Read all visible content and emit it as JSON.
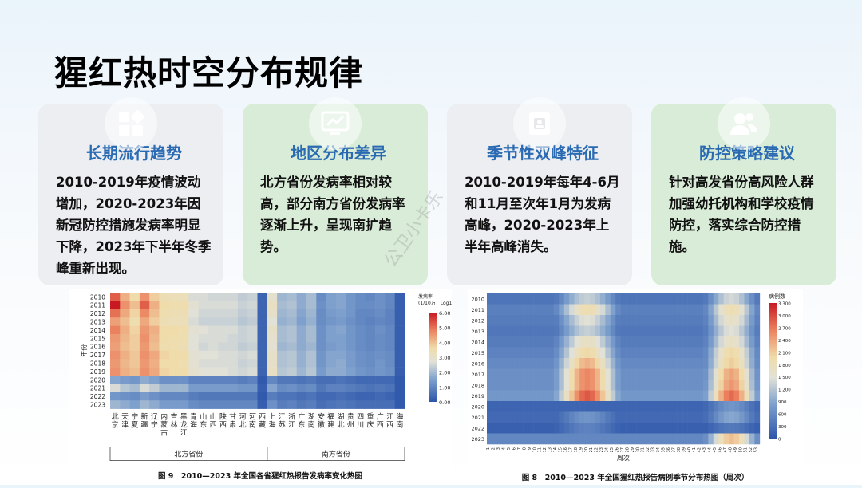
{
  "page_title": "猩红热时空分布规律",
  "watermark": "公卫小卡乐",
  "cards": [
    {
      "title": "长期流行趋势",
      "text": "2010-2019年疫情波动增加，2020-2023年因新冠防控措施发病率明显下降，2023年下半年冬季峰重新出现。",
      "icon": "apps-icon",
      "style": "gray"
    },
    {
      "title": "地区分布差异",
      "text": "北方省份发病率相对较高，部分南方省份发病率逐渐上升，呈现南扩趋势。",
      "icon": "chart-monitor-icon",
      "style": "green"
    },
    {
      "title": "季节性双峰特征",
      "text": "2010-2019年每年4-6月和11月至次年1月为发病高峰，2020-2023年上半年高峰消失。",
      "icon": "calendar-icon",
      "style": "gray"
    },
    {
      "title": "防控策略建议",
      "text": "针对高发省份高风险人群加强幼托机构和学校疫情防控，落实综合防控措施。",
      "icon": "users-icon",
      "style": "green"
    }
  ],
  "chart_data": [
    {
      "type": "heatmap",
      "title": "图 9　2010—2023 年全国各省猩红热报告发病率变化热图",
      "ylabel": "年份",
      "years": [
        "2010",
        "2011",
        "2012",
        "2013",
        "2014",
        "2015",
        "2016",
        "2017",
        "2018",
        "2019",
        "2020",
        "2021",
        "2022",
        "2023"
      ],
      "provinces": [
        "北京",
        "天津",
        "宁夏",
        "新疆",
        "辽宁",
        "内蒙古",
        "吉林",
        "黑龙江",
        "青海",
        "山东",
        "山西",
        "陕西",
        "甘肃",
        "河北",
        "河南",
        "西藏",
        "上海",
        "江苏",
        "浙江",
        "广东",
        "湖南",
        "安徽",
        "福建",
        "湖北",
        "贵州",
        "四川",
        "重庆",
        "广西",
        "江西",
        "海南"
      ],
      "groups": [
        {
          "label": "北方省份",
          "count": 16
        },
        {
          "label": "南方省份",
          "count": 14
        }
      ],
      "colorbar_label": "发病率\n(1/10万，Log10)",
      "colorbar_ticks": [
        "6.00",
        "5.00",
        "4.00",
        "3.00",
        "2.00",
        "1.00",
        "0.00"
      ],
      "values": [
        [
          5.2,
          4.2,
          3.6,
          4.6,
          3.8,
          3.4,
          3.3,
          3.3,
          2.6,
          2.6,
          2.5,
          2.5,
          2.5,
          2.3,
          2.4,
          0.3,
          2.9,
          1.9,
          2.0,
          1.7,
          2.0,
          1.1,
          1.5,
          1.6,
          1.3,
          1.1,
          1.0,
          1.2,
          1.0,
          0.2
        ],
        [
          6.0,
          4.6,
          4.0,
          5.2,
          4.2,
          3.6,
          3.5,
          3.5,
          2.8,
          2.6,
          2.6,
          2.6,
          2.6,
          2.4,
          2.5,
          0.3,
          3.1,
          2.0,
          2.1,
          1.7,
          2.0,
          1.2,
          1.5,
          1.6,
          1.3,
          1.1,
          1.1,
          1.2,
          1.0,
          0.2
        ],
        [
          5.0,
          4.3,
          3.7,
          4.7,
          4.0,
          3.5,
          3.4,
          3.4,
          2.7,
          2.5,
          2.5,
          2.5,
          2.5,
          2.3,
          2.4,
          0.3,
          3.0,
          1.9,
          2.0,
          1.6,
          1.9,
          1.1,
          1.4,
          1.5,
          1.3,
          1.0,
          1.0,
          1.1,
          0.9,
          0.2
        ],
        [
          4.4,
          4.0,
          3.5,
          4.3,
          3.8,
          3.4,
          3.3,
          3.3,
          2.6,
          2.4,
          2.4,
          2.4,
          2.4,
          2.2,
          2.3,
          0.3,
          2.7,
          1.8,
          1.9,
          1.5,
          1.8,
          1.1,
          1.3,
          1.4,
          1.2,
          1.0,
          0.9,
          1.0,
          0.9,
          0.2
        ],
        [
          4.8,
          4.2,
          3.7,
          4.5,
          4.2,
          3.6,
          3.6,
          3.5,
          2.8,
          2.7,
          2.6,
          2.6,
          2.6,
          2.4,
          2.5,
          0.3,
          3.0,
          2.0,
          2.1,
          1.7,
          2.0,
          1.2,
          1.5,
          1.6,
          1.3,
          1.1,
          1.0,
          1.2,
          1.0,
          0.2
        ],
        [
          4.5,
          4.1,
          3.8,
          4.6,
          4.1,
          3.6,
          3.5,
          3.5,
          2.7,
          2.6,
          2.6,
          2.6,
          2.5,
          2.4,
          2.5,
          0.3,
          2.9,
          2.0,
          2.1,
          1.7,
          2.0,
          1.2,
          1.5,
          1.5,
          1.3,
          1.1,
          1.0,
          1.1,
          1.0,
          0.2
        ],
        [
          4.4,
          4.0,
          3.8,
          4.5,
          4.0,
          3.5,
          3.5,
          3.4,
          2.7,
          2.5,
          2.6,
          2.5,
          2.5,
          2.3,
          2.4,
          0.3,
          2.8,
          1.9,
          2.0,
          1.7,
          1.9,
          1.2,
          1.4,
          1.5,
          1.3,
          1.1,
          1.0,
          1.1,
          1.0,
          0.2
        ],
        [
          4.6,
          4.2,
          3.9,
          4.6,
          4.3,
          3.7,
          3.6,
          3.6,
          2.8,
          2.7,
          2.7,
          2.6,
          2.6,
          2.5,
          2.6,
          0.3,
          3.0,
          2.1,
          2.2,
          1.8,
          2.1,
          1.3,
          1.6,
          1.6,
          1.4,
          1.2,
          1.1,
          1.2,
          1.1,
          0.2
        ],
        [
          4.5,
          4.1,
          3.9,
          4.5,
          4.2,
          3.6,
          3.6,
          3.5,
          2.8,
          2.6,
          2.6,
          2.6,
          2.6,
          2.4,
          2.5,
          0.3,
          3.0,
          2.1,
          2.2,
          1.8,
          2.1,
          1.3,
          1.6,
          1.7,
          1.4,
          1.2,
          1.1,
          1.3,
          1.1,
          0.2
        ],
        [
          4.6,
          4.2,
          4.0,
          4.6,
          4.3,
          3.7,
          3.6,
          3.6,
          2.9,
          2.7,
          2.7,
          2.7,
          2.6,
          2.5,
          2.6,
          0.3,
          3.1,
          2.2,
          2.3,
          1.9,
          2.2,
          1.4,
          1.7,
          1.7,
          1.5,
          1.3,
          1.2,
          1.3,
          1.2,
          0.2
        ],
        [
          1.6,
          1.4,
          1.3,
          1.7,
          1.5,
          1.2,
          1.2,
          1.2,
          0.9,
          0.9,
          0.9,
          0.9,
          0.9,
          0.8,
          0.9,
          0.1,
          1.0,
          0.7,
          0.7,
          0.6,
          0.7,
          0.5,
          0.5,
          0.6,
          0.5,
          0.4,
          0.4,
          0.4,
          0.4,
          0.1
        ],
        [
          2.6,
          2.2,
          2.0,
          2.6,
          2.3,
          1.9,
          1.9,
          1.9,
          1.4,
          1.4,
          1.4,
          1.4,
          1.4,
          1.3,
          1.3,
          0.2,
          1.6,
          1.1,
          1.2,
          1.0,
          1.1,
          0.7,
          0.9,
          0.9,
          0.8,
          0.7,
          0.6,
          0.7,
          0.6,
          0.1
        ],
        [
          1.3,
          1.2,
          1.1,
          1.4,
          1.2,
          1.0,
          1.0,
          1.0,
          0.8,
          0.7,
          0.7,
          0.7,
          0.7,
          0.7,
          0.7,
          0.1,
          0.8,
          0.6,
          0.6,
          0.5,
          0.6,
          0.4,
          0.4,
          0.5,
          0.4,
          0.3,
          0.3,
          0.4,
          0.3,
          0.1
        ],
        [
          1.9,
          1.7,
          1.5,
          1.9,
          1.7,
          1.4,
          1.4,
          1.4,
          1.1,
          1.0,
          1.0,
          1.0,
          1.0,
          1.0,
          1.0,
          0.2,
          1.2,
          0.8,
          0.9,
          0.7,
          0.8,
          0.5,
          0.6,
          0.7,
          0.6,
          0.5,
          0.5,
          0.5,
          0.5,
          0.1
        ]
      ],
      "vmin": 0,
      "vmax": 6
    },
    {
      "type": "heatmap",
      "title": "图 8　2010—2023 年全国猩红热报告病例季节分布热图（周次）",
      "xlabel": "周次",
      "colorbar_label": "病例数",
      "colorbar_ticks": [
        "3 300",
        "3 000",
        "2 700",
        "2 400",
        "2 100",
        "1 800",
        "1 500",
        "1 200",
        "900",
        "600",
        "300",
        "0"
      ],
      "years": [
        "2010",
        "2011",
        "2012",
        "2013",
        "2014",
        "2015",
        "2016",
        "2017",
        "2018",
        "2019",
        "2020",
        "2021",
        "2022",
        "2023"
      ],
      "weeks": [
        "1",
        "2",
        "3",
        "4",
        "5",
        "6",
        "7",
        "8",
        "9",
        "10",
        "11",
        "12",
        "13",
        "14",
        "15",
        "16",
        "17",
        "18",
        "19",
        "20",
        "21",
        "22",
        "23",
        "24",
        "25",
        "26",
        "27",
        "28",
        "29",
        "30",
        "31",
        "32",
        "33",
        "34",
        "35",
        "36",
        "37",
        "38",
        "39",
        "40",
        "41",
        "42",
        "43",
        "44",
        "45",
        "46",
        "47",
        "48",
        "49",
        "50",
        "51",
        "52",
        "53"
      ],
      "year_peaks": [
        {
          "spring": 1300,
          "winter": 1400
        },
        {
          "spring": 1900,
          "winter": 1900
        },
        {
          "spring": 1500,
          "winter": 1700
        },
        {
          "spring": 1300,
          "winter": 1500
        },
        {
          "spring": 1700,
          "winter": 1700
        },
        {
          "spring": 2000,
          "winter": 2000
        },
        {
          "spring": 2300,
          "winter": 2100
        },
        {
          "spring": 2600,
          "winter": 2400
        },
        {
          "spring": 2600,
          "winter": 2500
        },
        {
          "spring": 2900,
          "winter": 2800
        },
        {
          "spring": 150,
          "winter": 700
        },
        {
          "spring": 700,
          "winter": 900
        },
        {
          "spring": 500,
          "winter": 400
        },
        {
          "spring": 400,
          "winter": 2200
        }
      ],
      "vmin": 0,
      "vmax": 3300
    }
  ]
}
